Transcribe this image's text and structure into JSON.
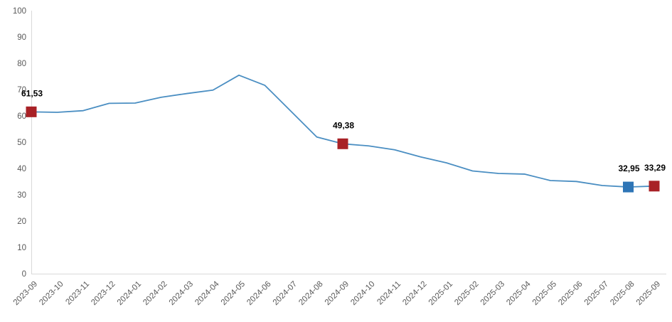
{
  "chart_data": {
    "type": "line",
    "title": "",
    "xlabel": "",
    "ylabel": "",
    "x": [
      "2023-09",
      "2023-10",
      "2023-11",
      "2023-12",
      "2024-01",
      "2024-02",
      "2024-03",
      "2024-04",
      "2024-05",
      "2024-06",
      "2024-07",
      "2024-08",
      "2024-09",
      "2024-10",
      "2024-11",
      "2024-12",
      "2025-01",
      "2025-02",
      "2025-03",
      "2025-04",
      "2025-05",
      "2025-06",
      "2025-07",
      "2025-08",
      "2025-09"
    ],
    "series": [
      {
        "name": "value",
        "values": [
          61.53,
          61.36,
          61.98,
          64.77,
          64.86,
          67.07,
          68.5,
          69.8,
          75.45,
          71.6,
          61.78,
          51.97,
          49.38,
          48.58,
          47.09,
          44.38,
          42.12,
          39.05,
          38.1,
          37.86,
          35.41,
          35.05,
          33.52,
          32.95,
          33.29
        ]
      }
    ],
    "ylim": [
      0,
      100
    ],
    "ytick_step": 10,
    "ytick_labels": [
      "0",
      "10",
      "20",
      "30",
      "40",
      "50",
      "60",
      "70",
      "80",
      "90",
      "100"
    ],
    "grid": false,
    "legend": "none",
    "marked_points": [
      {
        "x": "2023-09",
        "index": 0,
        "label": "61,53",
        "color": "#a82126"
      },
      {
        "x": "2024-09",
        "index": 12,
        "label": "49,38",
        "color": "#a82126"
      },
      {
        "x": "2025-08",
        "index": 23,
        "label": "32,95",
        "color": "#2e75b6"
      },
      {
        "x": "2025-09",
        "index": 24,
        "label": "33,29",
        "color": "#a82126"
      }
    ],
    "colors": {
      "line": "#4a8ec2",
      "axis_line": "#d9d9d9",
      "tick_label": "#595959",
      "data_label": "#000000",
      "background": "#ffffff"
    }
  }
}
